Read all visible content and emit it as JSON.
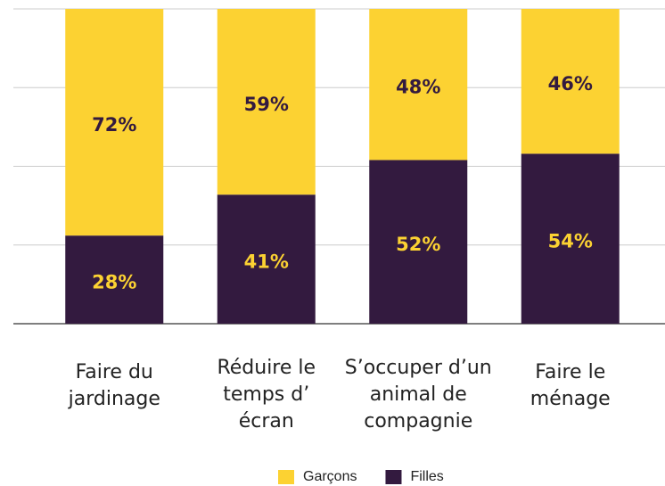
{
  "chart_data": {
    "type": "stacked_bar",
    "categories": [
      [
        "Faire du",
        "jardinage"
      ],
      [
        "Réduire le",
        "temps d’",
        "écran"
      ],
      [
        "S’occuper d’un",
        "animal de",
        "compagnie"
      ],
      [
        "Faire le",
        "ménage"
      ]
    ],
    "series": [
      {
        "name": "Filles",
        "color": "#331a3f",
        "label_color": "#fcd232",
        "values": [
          28,
          41,
          52,
          54
        ],
        "value_labels": [
          "28%",
          "41%",
          "52%",
          "54%"
        ]
      },
      {
        "name": "Garçons",
        "color": "#fcd232",
        "label_color": "#331a3f",
        "values": [
          72,
          59,
          48,
          46
        ],
        "value_labels": [
          "72%",
          "59%",
          "48%",
          "46%"
        ]
      }
    ],
    "legend_order": [
      1,
      0
    ],
    "ylim": [
      0,
      100
    ],
    "yticks": [
      0,
      25,
      50,
      75,
      100
    ],
    "grid": true
  }
}
